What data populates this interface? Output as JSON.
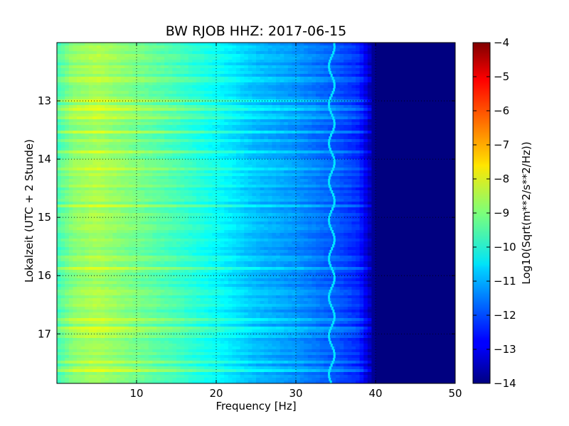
{
  "chart_data": {
    "type": "heatmap",
    "title": "BW RJOB HHZ: 2017-06-15",
    "xlabel": "Frequency [Hz]",
    "ylabel": "Lokalzeit (UTC + 2 Stunde)",
    "xlim": [
      0,
      50
    ],
    "ylim": [
      12.0,
      17.85
    ],
    "y_inverted": true,
    "grid": true,
    "x_ticks": [
      10,
      20,
      30,
      40,
      50
    ],
    "x_tick_labels": [
      "10",
      "20",
      "30",
      "40",
      "50"
    ],
    "y_ticks": [
      13,
      14,
      15,
      16,
      17
    ],
    "y_tick_labels": [
      "13",
      "14",
      "15",
      "16",
      "17"
    ],
    "colormap": "jet",
    "colorbar": {
      "label": "Log10(Sqrt(m**2/s**2/Hz))",
      "range": [
        -14,
        -4
      ],
      "ticks": [
        -4,
        -5,
        -6,
        -7,
        -8,
        -9,
        -10,
        -11,
        -12,
        -13,
        -14
      ],
      "tick_labels": [
        "−4",
        "−5",
        "−6",
        "−7",
        "−8",
        "−9",
        "−10",
        "−11",
        "−12",
        "−13",
        "−14"
      ]
    },
    "spectrum_profile": {
      "frequency_hz": [
        0,
        2,
        5,
        10,
        15,
        20,
        25,
        30,
        35,
        38,
        40,
        50
      ],
      "log_psd": [
        -9.6,
        -8.9,
        -8.6,
        -9.1,
        -9.6,
        -10.2,
        -10.9,
        -11.3,
        -11.9,
        -12.4,
        -14.0,
        -14.0
      ]
    },
    "tonal_line": {
      "frequency_hz": 34.5,
      "log_psd": -10.5
    }
  }
}
